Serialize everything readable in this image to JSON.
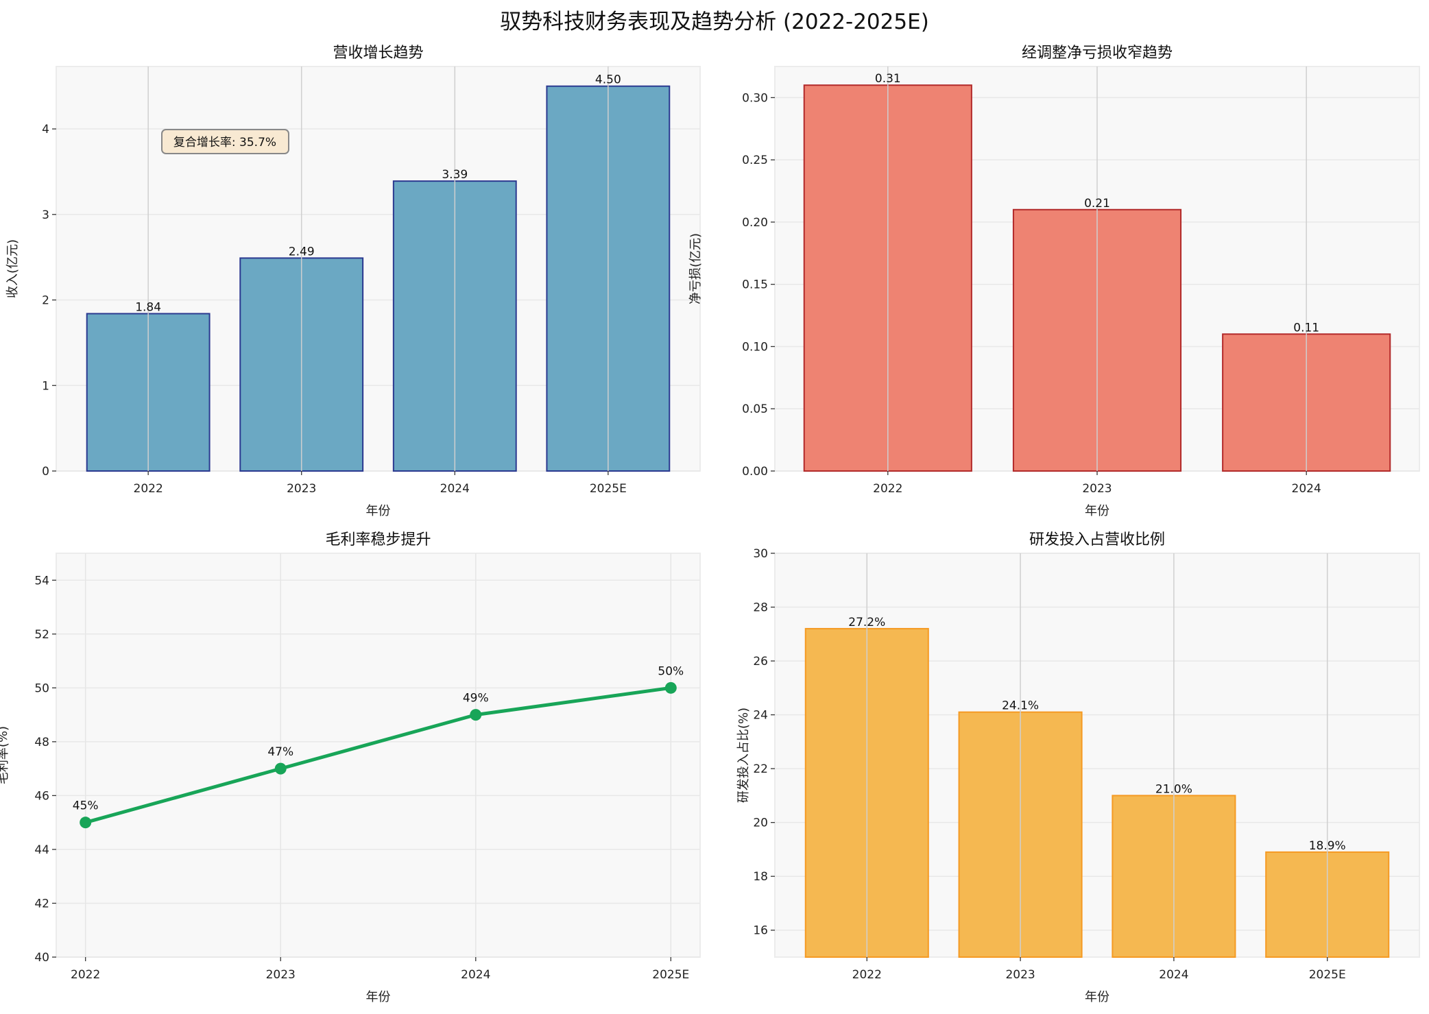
{
  "title": "驭势科技财务表现及趋势分析 (2022-2025E)",
  "chart_data": [
    {
      "type": "bar",
      "title": "营收增长趋势",
      "xlabel": "年份",
      "ylabel": "收入(亿元)",
      "categories": [
        "2022",
        "2023",
        "2024",
        "2025E"
      ],
      "values": [
        1.84,
        2.49,
        3.39,
        4.5
      ],
      "data_labels": [
        "1.84",
        "2.49",
        "3.39",
        "4.50"
      ],
      "ylim": [
        0,
        4.73
      ],
      "yticks": [
        0,
        1,
        2,
        3,
        4
      ],
      "ytick_labels": [
        "0",
        "1",
        "2",
        "3",
        "4"
      ],
      "grid": true,
      "colors": {
        "fill": "#6ba8c3",
        "edge": "#2b3990"
      },
      "annotation": {
        "text": "复合增长率: 35.7%",
        "fill": "#f8e9d2",
        "edge": "#888888"
      }
    },
    {
      "type": "bar",
      "title": "经调整净亏损收窄趋势",
      "xlabel": "年份",
      "ylabel": "净亏损(亿元)",
      "categories": [
        "2022",
        "2023",
        "2024"
      ],
      "values": [
        0.31,
        0.21,
        0.11
      ],
      "data_labels": [
        "0.31",
        "0.21",
        "0.11"
      ],
      "ylim": [
        0,
        0.325
      ],
      "yticks": [
        0,
        0.05,
        0.1,
        0.15,
        0.2,
        0.25,
        0.3
      ],
      "ytick_labels": [
        "0.00",
        "0.05",
        "0.10",
        "0.15",
        "0.20",
        "0.25",
        "0.30"
      ],
      "grid": true,
      "colors": {
        "fill": "#ee8372",
        "edge": "#b22a2a"
      }
    },
    {
      "type": "line",
      "title": "毛利率稳步提升",
      "xlabel": "年份",
      "ylabel": "毛利率(%)",
      "categories": [
        "2022",
        "2023",
        "2024",
        "2025E"
      ],
      "values": [
        45,
        47,
        49,
        50
      ],
      "data_labels": [
        "45%",
        "47%",
        "49%",
        "50%"
      ],
      "ylim": [
        40,
        55
      ],
      "yticks": [
        40,
        42,
        44,
        46,
        48,
        50,
        52,
        54
      ],
      "ytick_labels": [
        "40",
        "42",
        "44",
        "46",
        "48",
        "50",
        "52",
        "54"
      ],
      "grid": true,
      "colors": {
        "line": "#18a558"
      }
    },
    {
      "type": "bar",
      "title": "研发投入占营收比例",
      "xlabel": "年份",
      "ylabel": "研发投入占比(%)",
      "categories": [
        "2022",
        "2023",
        "2024",
        "2025E"
      ],
      "values": [
        27.2,
        24.1,
        21.0,
        18.9
      ],
      "data_labels": [
        "27.2%",
        "24.1%",
        "21.0%",
        "18.9%"
      ],
      "ylim": [
        15,
        30
      ],
      "yticks": [
        16,
        18,
        20,
        22,
        24,
        26,
        28,
        30
      ],
      "ytick_labels": [
        "16",
        "18",
        "20",
        "22",
        "24",
        "26",
        "28",
        "30"
      ],
      "grid": true,
      "colors": {
        "fill": "#f5b851",
        "edge": "#f59a23"
      }
    }
  ]
}
